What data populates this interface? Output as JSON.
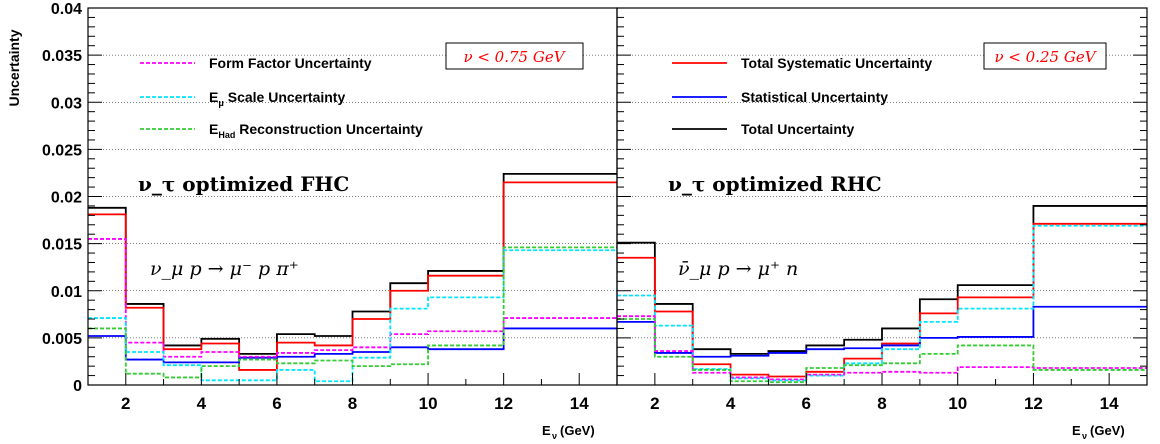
{
  "colors": {
    "form_factor": "#ff00ff",
    "emu_scale": "#00e5ff",
    "ehad": "#33cc33",
    "total_sys": "#ff0000",
    "stat": "#0000ff",
    "total": "#000000"
  },
  "chart_data": [
    {
      "type": "step",
      "ylabel": "Uncertainty",
      "xlabel": "E",
      "xlabel_sub": "ν",
      "xlabel_unit": "(GeV)",
      "xlim": [
        1,
        15
      ],
      "ylim": [
        0,
        0.04
      ],
      "xticks": [
        2,
        4,
        6,
        8,
        10,
        12,
        14
      ],
      "yticks": [
        0,
        0.005,
        0.01,
        0.015,
        0.02,
        0.025,
        0.03,
        0.035,
        0.04
      ],
      "ytick_labels": [
        "0",
        "0.005",
        "0.01",
        "0.015",
        "0.02",
        "0.025",
        "0.03",
        "0.035",
        "0.04"
      ],
      "grid": "horizontal dotted",
      "bin_edges": [
        1,
        2,
        3,
        4,
        5,
        6,
        7,
        8,
        9,
        10,
        12,
        15
      ],
      "title": "ν_τ optimized FHC",
      "process": "ν_μ p → μ⁻ p π⁺",
      "annotation": "ν < 0.75 GeV",
      "legend": [
        {
          "name": "Form Factor Uncertainty",
          "color_key": "form_factor"
        },
        {
          "name": "E",
          "sub": "μ",
          "suffix": " Scale Uncertainty",
          "color_key": "emu_scale"
        },
        {
          "name": "E",
          "sub": "Had",
          "suffix": " Reconstruction Uncertainty",
          "color_key": "ehad"
        }
      ],
      "series": [
        {
          "key": "total",
          "values": [
            0.0188,
            0.0086,
            0.0042,
            0.0049,
            0.0033,
            0.0054,
            0.0052,
            0.0078,
            0.0108,
            0.0121,
            0.0224
          ]
        },
        {
          "key": "total_sys",
          "values": [
            0.0181,
            0.0082,
            0.0038,
            0.0044,
            0.0016,
            0.0045,
            0.0042,
            0.007,
            0.01,
            0.0116,
            0.0215
          ]
        },
        {
          "key": "stat",
          "values": [
            0.0052,
            0.0027,
            0.0024,
            0.0024,
            0.0029,
            0.003,
            0.0033,
            0.0035,
            0.004,
            0.0038,
            0.006
          ]
        },
        {
          "key": "form_factor",
          "values": [
            0.0155,
            0.0045,
            0.003,
            0.0035,
            0.003,
            0.0034,
            0.0037,
            0.004,
            0.0054,
            0.0057,
            0.0071
          ]
        },
        {
          "key": "emu_scale",
          "values": [
            0.0071,
            0.0035,
            0.0021,
            0.0005,
            0.0005,
            0.0016,
            0.0004,
            0.0029,
            0.0081,
            0.0093,
            0.0143
          ]
        },
        {
          "key": "ehad",
          "values": [
            0.006,
            0.0012,
            0.0008,
            0.002,
            0.0027,
            0.0023,
            0.0026,
            0.002,
            0.0022,
            0.0042,
            0.0146
          ]
        }
      ]
    },
    {
      "type": "step",
      "xlabel": "E",
      "xlabel_sub": "ν",
      "xlabel_unit": "(GeV)",
      "xlim": [
        1,
        15
      ],
      "ylim": [
        0,
        0.04
      ],
      "xticks": [
        2,
        4,
        6,
        8,
        10,
        12,
        14
      ],
      "grid": "horizontal dotted",
      "bin_edges": [
        1,
        2,
        3,
        4,
        5,
        6,
        7,
        8,
        9,
        10,
        12,
        15
      ],
      "title": "ν_τ optimized RHC",
      "process": "ν̄_μ p → μ⁺ n",
      "annotation": "ν < 0.25 GeV",
      "legend": [
        {
          "name": "Total Systematic Uncertainty",
          "color_key": "total_sys"
        },
        {
          "name": "Statistical Uncertainty",
          "color_key": "stat"
        },
        {
          "name": "Total Uncertainty",
          "color_key": "total"
        }
      ],
      "series": [
        {
          "key": "total",
          "values": [
            0.0151,
            0.0086,
            0.0038,
            0.0033,
            0.0036,
            0.0042,
            0.0048,
            0.006,
            0.0091,
            0.0106,
            0.019
          ]
        },
        {
          "key": "total_sys",
          "values": [
            0.0135,
            0.0078,
            0.0022,
            0.0011,
            0.0009,
            0.0014,
            0.0028,
            0.0044,
            0.0076,
            0.0093,
            0.0171
          ]
        },
        {
          "key": "stat",
          "values": [
            0.0067,
            0.0034,
            0.003,
            0.0031,
            0.0034,
            0.0038,
            0.0039,
            0.0042,
            0.005,
            0.0051,
            0.0083
          ]
        },
        {
          "key": "emu_scale",
          "values": [
            0.0095,
            0.0063,
            0.0017,
            0.0007,
            0.0005,
            0.001,
            0.0023,
            0.0038,
            0.0067,
            0.0081,
            0.0169
          ]
        },
        {
          "key": "form_factor",
          "values": [
            0.0073,
            0.0036,
            0.0013,
            0.0008,
            0.0006,
            0.0011,
            0.0013,
            0.0014,
            0.0013,
            0.0019,
            0.0018
          ]
        },
        {
          "key": "ehad",
          "values": [
            0.007,
            0.003,
            0.0016,
            0.0004,
            0.0003,
            0.0018,
            0.0021,
            0.0023,
            0.0033,
            0.0042,
            0.0016
          ]
        }
      ]
    }
  ]
}
